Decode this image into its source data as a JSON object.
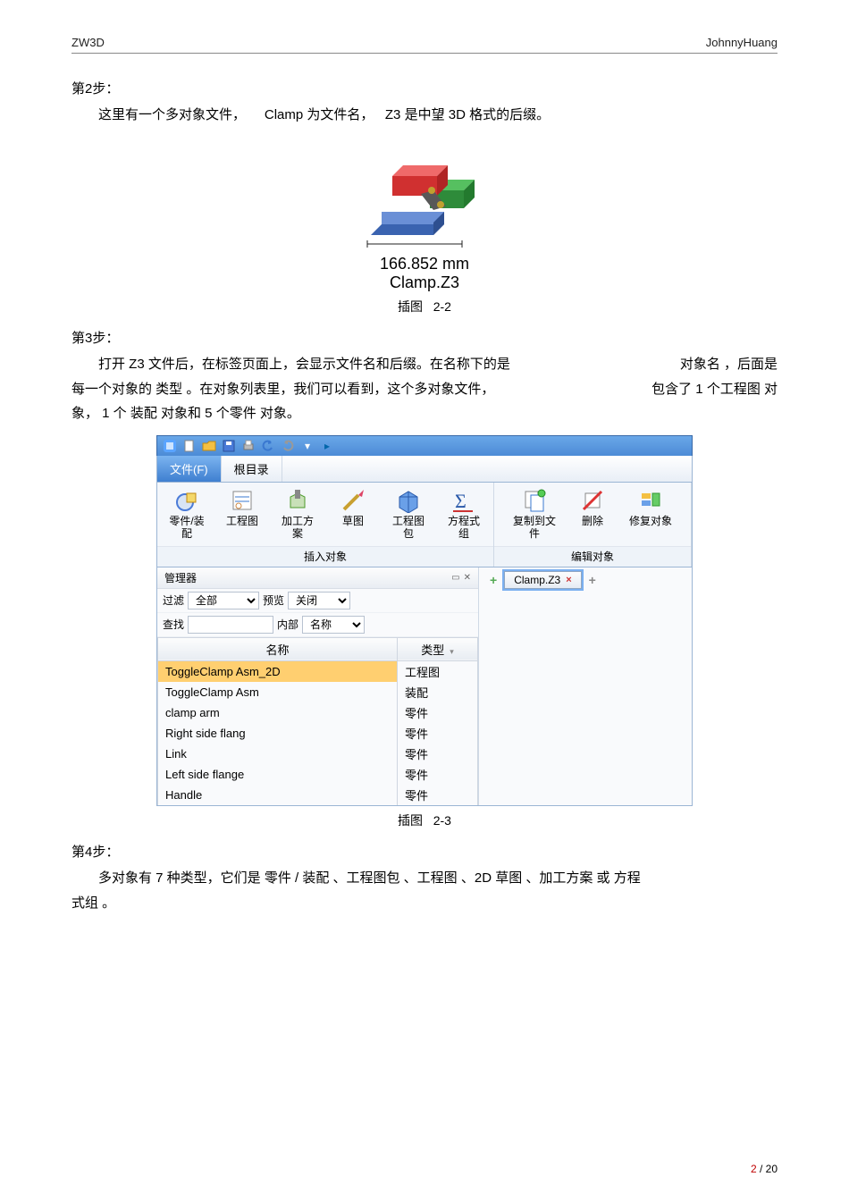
{
  "header": {
    "left": "ZW3D",
    "right": "JohnnyHuang"
  },
  "step2": {
    "title": "第2步：",
    "text_a": "这里有一个多对象文件，",
    "text_b": "Clamp 为文件名，",
    "text_c": "Z3 是中望 3D 格式的后缀。"
  },
  "fig22": {
    "dim_label": "166.852 mm",
    "file_label": "Clamp.Z3",
    "caption_prefix": "插图",
    "caption_num": "2-2",
    "model_colors": {
      "base": "#3a63b0",
      "base_top": "#6a8fd6",
      "arm": "#d03030",
      "arm_top": "#ef6a6a",
      "handle": "#2e8b3a",
      "handle_top": "#56c060",
      "link": "#585858",
      "pin": "#c0a030"
    }
  },
  "step3": {
    "title": "第3步：",
    "line1_a": "打开 Z3 文件后，在标签页面上，会显示文件名和后缀。在名称下的是",
    "line1_b": "对象名 ，后面是",
    "line2_a": "每一个对象的  类型 。在对象列表里，我们可以看到，这个多对象文件，",
    "line2_b": "包含了  1 个工程图 对",
    "line3": "象，  1 个 装配 对象和  5 个零件 对象。"
  },
  "ui": {
    "menu_file": "文件(F)",
    "menu_root": "根目录",
    "ribbon_left": {
      "buttons": [
        {
          "label": "零件/装配",
          "icon": "part-asm"
        },
        {
          "label": "工程图",
          "icon": "drawing"
        },
        {
          "label": "加工方案",
          "icon": "cam"
        },
        {
          "label": "草图",
          "icon": "sketch"
        },
        {
          "label": "工程图包",
          "icon": "pkg"
        },
        {
          "label": "方程式组",
          "icon": "equation"
        }
      ],
      "group_label": "插入对象"
    },
    "ribbon_right": {
      "buttons": [
        {
          "label_line1": "复制到文",
          "label_line2": "件",
          "icon": "copy"
        },
        {
          "label_line1": "删除",
          "label_line2": "",
          "icon": "delete"
        },
        {
          "label_line1": "修复对象",
          "label_line2": "",
          "icon": "repair"
        }
      ],
      "group_label": "编辑对象"
    },
    "manager": {
      "title": "管理器",
      "filter_label": "过滤",
      "filter_value": "全部",
      "preview_label": "预览",
      "preview_value": "关闭",
      "find_label": "查找",
      "internal_label": "内部",
      "internal_value": "名称",
      "col_name": "名称",
      "col_type": "类型",
      "rows": [
        {
          "name": "ToggleClamp Asm_2D",
          "type": "工程图",
          "sel": true
        },
        {
          "name": "ToggleClamp Asm",
          "type": "装配"
        },
        {
          "name": "clamp arm",
          "type": "零件"
        },
        {
          "name": "Right side flang",
          "type": "零件"
        },
        {
          "name": "Link",
          "type": "零件"
        },
        {
          "name": "Left side flange",
          "type": "零件"
        },
        {
          "name": "Handle",
          "type": "零件"
        }
      ]
    },
    "tab": {
      "label": "Clamp.Z3"
    }
  },
  "fig23": {
    "caption_prefix": "插图",
    "caption_num": "2-3"
  },
  "step4": {
    "title": "第4步：",
    "line1": "多对象有  7 种类型，它们是  零件 / 装配 、工程图包  、工程图 、2D 草图 、加工方案 或 方程",
    "line2": "式组 。"
  },
  "pagefoot": {
    "current": "2",
    "sep": "/",
    "total": "20"
  }
}
